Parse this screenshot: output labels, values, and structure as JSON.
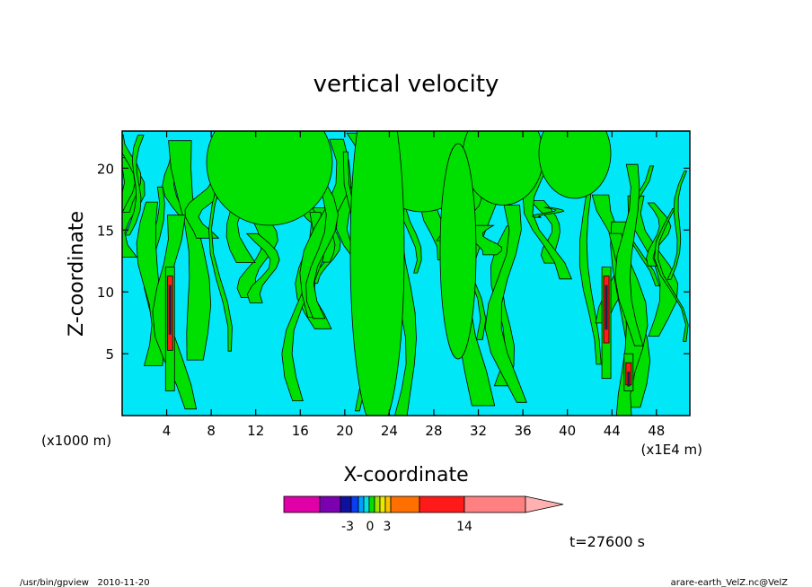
{
  "chart_data": {
    "type": "heatmap",
    "title": "vertical velocity",
    "xlabel": "X-coordinate",
    "ylabel": "Z-coordinate",
    "x_unit_left": "(x1000 m)",
    "x_unit_right": "(x1E4 m)",
    "xlim": [
      0,
      51
    ],
    "ylim": [
      0,
      23
    ],
    "x_ticks": [
      4,
      8,
      12,
      16,
      20,
      24,
      28,
      32,
      36,
      40,
      44,
      48
    ],
    "y_ticks": [
      5,
      10,
      15,
      20
    ],
    "time_label": "t=27600 s",
    "colorbar": {
      "colors": [
        "#e000a8",
        "#7a00b0",
        "#1010a0",
        "#0a3cf0",
        "#00a0ff",
        "#00e0e0",
        "#00e000",
        "#a0e000",
        "#e8e800",
        "#ffc000",
        "#ff7000",
        "#ff1a1a",
        "#ff8080",
        "#ffb0b0"
      ],
      "tick_labels": [
        "-3",
        "0",
        "3",
        "14"
      ]
    },
    "footer_left": "/usr/bin/gpview   2010-11-20",
    "footer_right": "arare-earth_VelZ.nc@VelZ"
  }
}
